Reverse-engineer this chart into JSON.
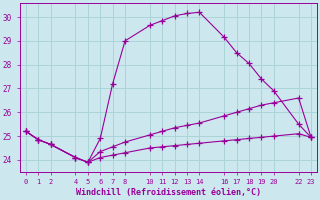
{
  "xlabel": "Windchill (Refroidissement éolien,°C)",
  "bg_color": "#cce8ee",
  "line_color": "#990099",
  "grid_color": "#aad4d8",
  "xlim": [
    -0.5,
    23.5
  ],
  "ylim": [
    23.5,
    30.6
  ],
  "yticks": [
    24,
    25,
    26,
    27,
    28,
    29,
    30
  ],
  "xticks": [
    0,
    1,
    2,
    4,
    5,
    6,
    7,
    8,
    10,
    11,
    12,
    13,
    14,
    16,
    17,
    18,
    19,
    20,
    22,
    23
  ],
  "line1_x": [
    0,
    1,
    2,
    4,
    5,
    6,
    7,
    8,
    10,
    11,
    12,
    13,
    14,
    16,
    17,
    18,
    19,
    20,
    22,
    23
  ],
  "line1_y": [
    25.2,
    24.85,
    24.65,
    24.1,
    23.9,
    24.9,
    27.2,
    29.0,
    29.65,
    29.85,
    30.05,
    30.15,
    30.2,
    29.15,
    28.5,
    28.05,
    27.4,
    26.9,
    25.5,
    24.95
  ],
  "line2_x": [
    0,
    1,
    2,
    4,
    5,
    6,
    7,
    8,
    10,
    11,
    12,
    13,
    14,
    16,
    17,
    18,
    19,
    20,
    22,
    23
  ],
  "line2_y": [
    25.2,
    24.85,
    24.65,
    24.1,
    23.9,
    24.35,
    24.55,
    24.75,
    25.05,
    25.2,
    25.35,
    25.45,
    25.55,
    25.85,
    26.0,
    26.15,
    26.3,
    26.4,
    26.6,
    24.95
  ],
  "line3_x": [
    0,
    1,
    2,
    4,
    5,
    6,
    7,
    8,
    10,
    11,
    12,
    13,
    14,
    16,
    17,
    18,
    19,
    20,
    22,
    23
  ],
  "line3_y": [
    25.2,
    24.85,
    24.65,
    24.1,
    23.9,
    24.1,
    24.2,
    24.3,
    24.5,
    24.55,
    24.6,
    24.65,
    24.7,
    24.8,
    24.85,
    24.9,
    24.95,
    25.0,
    25.1,
    24.95
  ]
}
